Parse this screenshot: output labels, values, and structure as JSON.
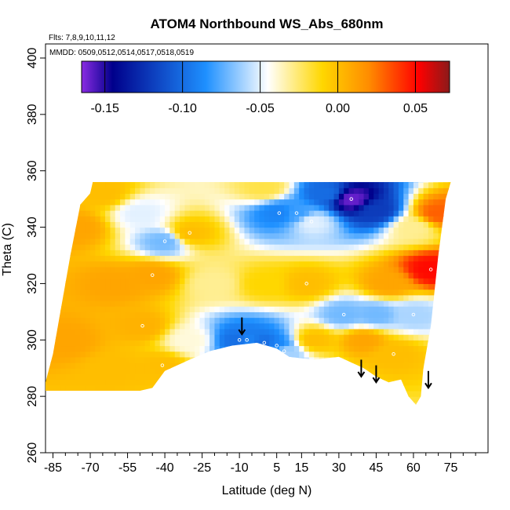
{
  "chart_data": {
    "type": "heatmap",
    "title": "ATOM4 Northbound WS_Abs_680nm",
    "flights_note": "Flts: 7,8,9,10,11,12",
    "dates_note": "MMDD: 0509,0512,0514,0517,0518,0519",
    "xlabel": "Latitude (deg N)",
    "ylabel": "Theta (C)",
    "xlim": [
      -88,
      90
    ],
    "ylim": [
      260,
      405
    ],
    "x_ticks": [
      -85,
      -70,
      -55,
      -40,
      -25,
      -10,
      5,
      15,
      30,
      45,
      60,
      75
    ],
    "y_ticks": [
      260,
      280,
      300,
      320,
      340,
      360,
      380,
      400
    ],
    "colorbar": {
      "range": [
        -0.165,
        0.072
      ],
      "ticks": [
        -0.15,
        -0.1,
        -0.05,
        0.0,
        0.05
      ],
      "tick_labels": [
        "-0.15",
        "-0.10",
        "-0.05",
        "0.00",
        "0.05"
      ],
      "colors": [
        "#8a2be2",
        "#00008b",
        "#1e90ff",
        "#ffffff",
        "#ffd700",
        "#ff8c00",
        "#ff0000",
        "#8b1a1a"
      ]
    },
    "points": [
      {
        "lat": -30,
        "theta": 338,
        "v": 0.0
      },
      {
        "lat": -40,
        "theta": 335,
        "v": -0.07
      },
      {
        "lat": -45,
        "theta": 323,
        "v": 0.01
      },
      {
        "lat": -49,
        "theta": 305,
        "v": 0.005
      },
      {
        "lat": -41,
        "theta": 291,
        "v": 0.0
      },
      {
        "lat": -10,
        "theta": 300,
        "v": -0.1
      },
      {
        "lat": -7,
        "theta": 300,
        "v": -0.09
      },
      {
        "lat": 0,
        "theta": 299,
        "v": -0.1
      },
      {
        "lat": 5,
        "theta": 298,
        "v": -0.09
      },
      {
        "lat": 8,
        "theta": 296,
        "v": -0.06
      },
      {
        "lat": 6,
        "theta": 345,
        "v": -0.09
      },
      {
        "lat": 13,
        "theta": 345,
        "v": -0.08
      },
      {
        "lat": 19,
        "theta": 342,
        "v": -0.05
      },
      {
        "lat": 17,
        "theta": 320,
        "v": 0.0
      },
      {
        "lat": 35,
        "theta": 350,
        "v": -0.16
      },
      {
        "lat": 32,
        "theta": 309,
        "v": -0.07
      },
      {
        "lat": 52,
        "theta": 295,
        "v": 0.0
      },
      {
        "lat": 60,
        "theta": 309,
        "v": -0.06
      },
      {
        "lat": 67,
        "theta": 325,
        "v": 0.05
      }
    ],
    "arrows": [
      {
        "lat": -9,
        "theta": 304
      },
      {
        "lat": 39,
        "theta": 289
      },
      {
        "lat": 45,
        "theta": 287
      },
      {
        "lat": 66,
        "theta": 285
      }
    ]
  }
}
